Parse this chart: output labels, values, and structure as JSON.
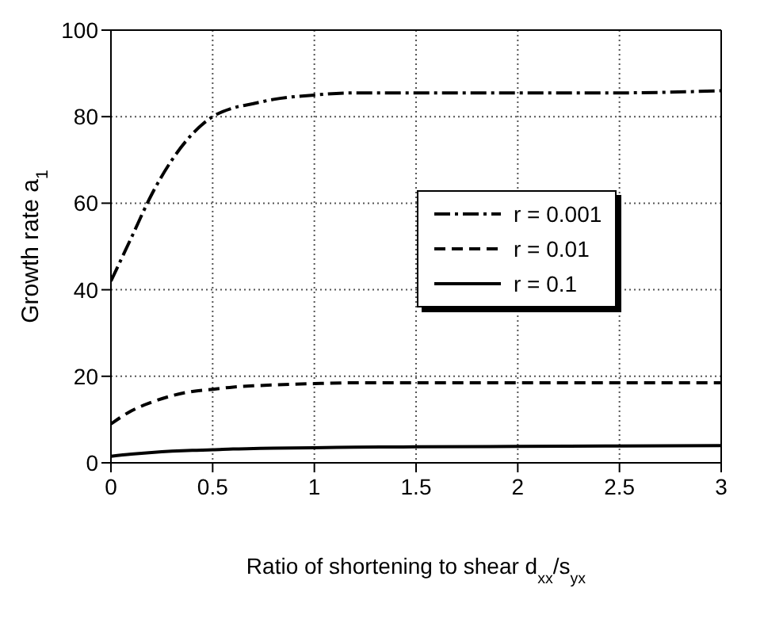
{
  "chart_data": {
    "type": "line",
    "xlabel": "Ratio of shortening to shear d$_{xx}$/s$_{yx}$",
    "ylabel": "Growth rate a$_{1}$",
    "xlim": [
      0,
      3
    ],
    "xticks": [
      0,
      0.5,
      1,
      1.5,
      2,
      2.5,
      3
    ],
    "ylim": [
      0,
      100
    ],
    "yticks": [
      0,
      20,
      40,
      60,
      80,
      100
    ],
    "grid": true,
    "legend": "right",
    "marker": "none",
    "x": [
      0,
      0.1,
      0.2,
      0.3,
      0.4,
      0.5,
      0.6,
      0.7,
      0.8,
      1,
      1.2,
      1.5,
      2,
      2.5,
      3
    ],
    "series": [
      {
        "name": "r = 0.001",
        "color": "#000000",
        "line_style": "dashdot",
        "values": [
          42,
          52,
          62,
          70,
          76,
          80,
          82,
          83,
          84,
          85,
          85.5,
          85.5,
          85.5,
          85.5,
          86
        ]
      },
      {
        "name": "r = 0.01",
        "color": "#000000",
        "line_style": "dashed",
        "values": [
          9,
          12,
          14,
          15.5,
          16.5,
          17,
          17.5,
          17.8,
          18,
          18.3,
          18.5,
          18.5,
          18.5,
          18.5,
          18.5
        ]
      },
      {
        "name": "r = 0.1",
        "color": "#000000",
        "line_style": "solid",
        "values": [
          1.5,
          2,
          2.4,
          2.7,
          2.9,
          3,
          3.2,
          3.3,
          3.4,
          3.5,
          3.6,
          3.7,
          3.8,
          3.9,
          4
        ]
      }
    ]
  }
}
